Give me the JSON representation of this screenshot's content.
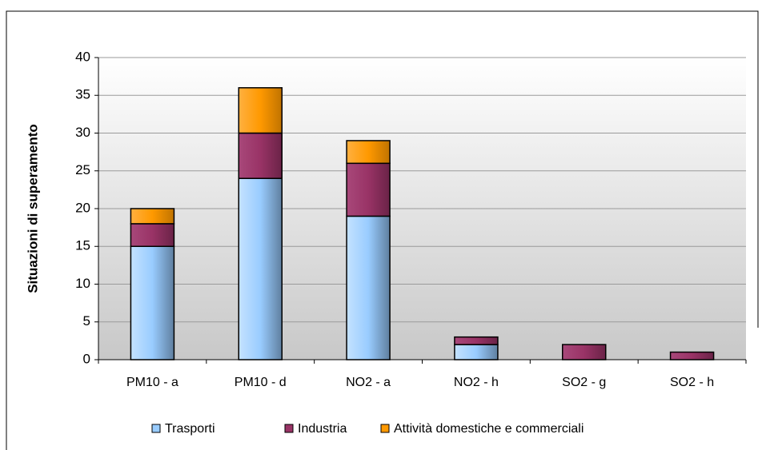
{
  "chart_data": {
    "type": "stacked_bar",
    "y_label": "Situazioni di superamento",
    "categories": [
      "PM10 - a",
      "PM10 - d",
      "NO2 - a",
      "NO2 - h",
      "SO2 - g",
      "SO2 - h"
    ],
    "series": [
      {
        "name": "Trasporti",
        "color": "#99ccff",
        "values": [
          15,
          24,
          19,
          2,
          0,
          0
        ]
      },
      {
        "name": "Industria",
        "color": "#993366",
        "values": [
          3,
          6,
          7,
          1,
          2,
          1
        ]
      },
      {
        "name": "Attività domestiche e commerciali",
        "color": "#ff9900",
        "values": [
          2,
          6,
          3,
          0,
          0,
          0
        ]
      }
    ],
    "ylim": [
      0,
      40
    ],
    "yticks": [
      0,
      5,
      10,
      15,
      20,
      25,
      30,
      35,
      40
    ],
    "grid": true,
    "legend": "bottom"
  }
}
